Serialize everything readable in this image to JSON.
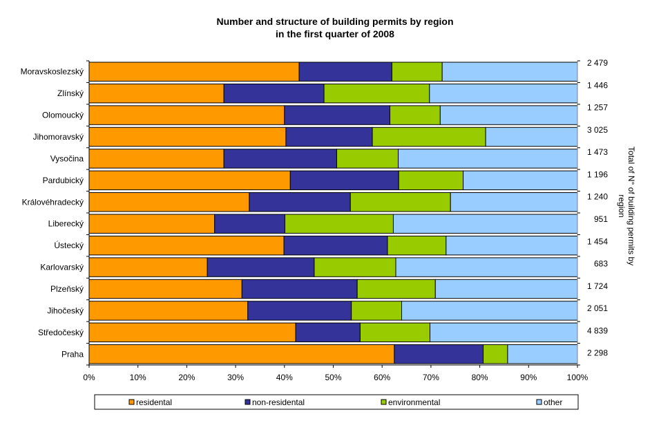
{
  "chart_data": {
    "type": "bar",
    "orientation": "horizontal",
    "stacked": "percent",
    "title": [
      "Number and structure of building permits by region",
      "in the first quarter of 2008"
    ],
    "categories": [
      "Moravskoslezský",
      "Zlínský",
      "Olomoucký",
      "Jihomoravský",
      "Vysočina",
      "Pardubický",
      "Královéhradecký",
      "Liberecký",
      "Ústecký",
      "Karlovarský",
      "Plzeňský",
      "Jihočeský",
      "Středočeský",
      "Praha"
    ],
    "series": [
      {
        "name": "residental",
        "color": "#FF9900",
        "values": [
          43.0,
          27.6,
          40.0,
          40.3,
          27.6,
          41.2,
          32.8,
          25.7,
          39.9,
          24.2,
          31.3,
          32.5,
          42.3,
          62.5
        ]
      },
      {
        "name": "non-residental",
        "color": "#333399",
        "values": [
          19.0,
          20.5,
          21.6,
          17.7,
          23.1,
          22.2,
          20.7,
          14.4,
          21.2,
          21.9,
          23.6,
          21.2,
          13.2,
          18.2
        ]
      },
      {
        "name": "environmental",
        "color": "#99CC00",
        "values": [
          10.3,
          21.6,
          10.3,
          23.2,
          12.6,
          13.2,
          20.5,
          22.2,
          12.0,
          16.7,
          16.0,
          10.3,
          14.3,
          5.0
        ]
      },
      {
        "name": "other",
        "color": "#99CCFF",
        "values": [
          27.7,
          30.3,
          28.1,
          18.8,
          36.7,
          23.4,
          26.0,
          37.7,
          26.9,
          37.2,
          29.1,
          36.0,
          30.2,
          14.3
        ]
      }
    ],
    "totals": [
      "2 479",
      "1 446",
      "1 257",
      "3 025",
      "1 473",
      "1 196",
      "1 240",
      "951",
      "1 454",
      "683",
      "1 724",
      "2 051",
      "4 839",
      "2 298"
    ],
    "right_axis_label": [
      "Total of N° of building permits by",
      "region"
    ],
    "xticks": [
      "0%",
      "10%",
      "20%",
      "30%",
      "40%",
      "50%",
      "60%",
      "70%",
      "80%",
      "90%",
      "100%"
    ],
    "xlim": [
      0,
      100
    ],
    "grid": false,
    "legend_position": "bottom"
  }
}
